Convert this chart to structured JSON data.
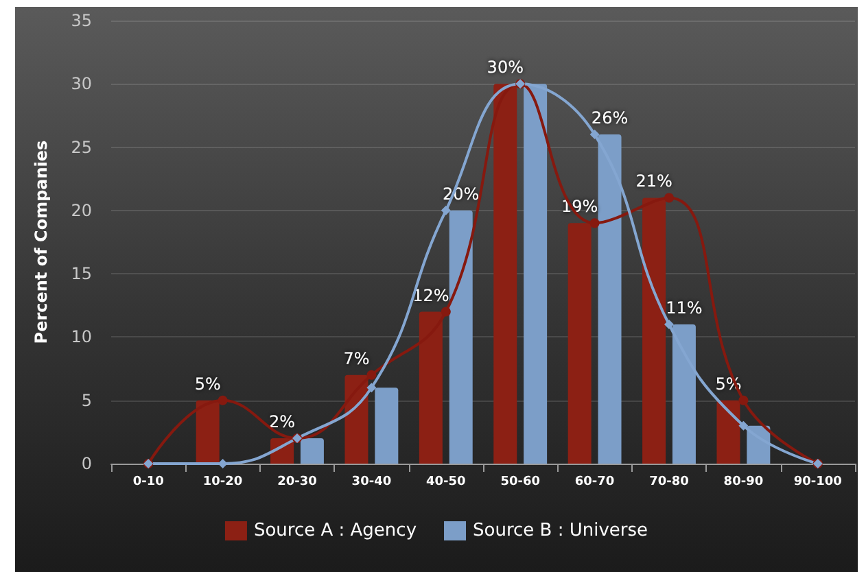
{
  "chart_data": {
    "type": "bar",
    "ylabel": "Percent of Companies",
    "categories": [
      "0-10",
      "10-20",
      "20-30",
      "30-40",
      "40-50",
      "50-60",
      "60-70",
      "70-80",
      "80-90",
      "90-100"
    ],
    "ylim": [
      0,
      35
    ],
    "yticks": [
      0,
      5,
      10,
      15,
      20,
      25,
      30,
      35
    ],
    "grid": "y",
    "legend": "bottom",
    "series": [
      {
        "name": "Source A : Agency",
        "color": "#8c2014",
        "values": [
          0,
          5,
          2,
          7,
          12,
          30,
          19,
          21,
          5,
          0
        ],
        "value_labels": [
          null,
          "5%",
          "2%",
          "7%",
          "12%",
          "30%",
          "19%",
          "21%",
          "5%",
          null
        ]
      },
      {
        "name": "Source B : Universe",
        "color": "#7c9ec8",
        "values": [
          0,
          0,
          2,
          6,
          20,
          30,
          26,
          11,
          3,
          0
        ],
        "value_labels": [
          null,
          null,
          null,
          null,
          "20%",
          null,
          "26%",
          "11%",
          null,
          null
        ]
      },
      {
        "type": "line",
        "color": "#86190f",
        "values": [
          0,
          5,
          2,
          7,
          12,
          30,
          19,
          21,
          5,
          0
        ],
        "marker": "circle"
      },
      {
        "type": "line",
        "color": "#84a6d1",
        "values": [
          0,
          0,
          2,
          6,
          20,
          30,
          26,
          11,
          3,
          0
        ],
        "marker": "diamond"
      }
    ]
  }
}
